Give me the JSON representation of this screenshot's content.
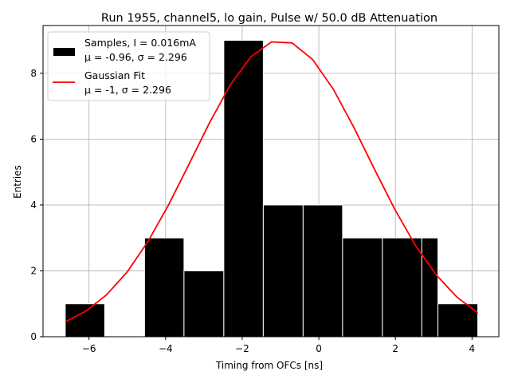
{
  "chart_data": {
    "type": "bar",
    "title": "Run 1955, channel5, lo gain, Pulse w/ 50.0 dB Attenuation",
    "xlabel": "Timing from OFCs [ns]",
    "ylabel": "Entries",
    "xlim": [
      -7.2,
      4.7
    ],
    "ylim": [
      0,
      9.45
    ],
    "x_ticks": [
      -6,
      -4,
      -2,
      0,
      2,
      4
    ],
    "x_tick_labels": [
      "−6",
      "−4",
      "−2",
      "0",
      "2",
      "4"
    ],
    "y_ticks": [
      0,
      2,
      4,
      6,
      8
    ],
    "y_tick_labels": [
      "0",
      "2",
      "4",
      "6",
      "8"
    ],
    "grid": true,
    "legend_position": "top-left",
    "colors": {
      "bars": "#000000",
      "bar_edge": "#ffffff",
      "fit": "#ff0000",
      "grid": "#b0b0b0"
    },
    "series": [
      {
        "name": "Samples, I = 0.016mA",
        "name_line2": "μ = -0.96, σ = 2.296",
        "kind": "histogram",
        "bins": [
          {
            "x0": -6.62,
            "x1": -5.59,
            "count": 1
          },
          {
            "x0": -5.59,
            "x1": -4.55,
            "count": 0
          },
          {
            "x0": -4.55,
            "x1": -3.52,
            "count": 3
          },
          {
            "x0": -3.52,
            "x1": -2.48,
            "count": 2
          },
          {
            "x0": -2.48,
            "x1": -1.45,
            "count": 9
          },
          {
            "x0": -1.45,
            "x1": -0.41,
            "count": 4
          },
          {
            "x0": -0.41,
            "x1": 0.62,
            "count": 4
          },
          {
            "x0": 0.62,
            "x1": 1.66,
            "count": 3
          },
          {
            "x0": 1.66,
            "x1": 2.69,
            "count": 3
          },
          {
            "x0": 2.69,
            "x1": 3.11,
            "count": 3
          },
          {
            "x0": 3.11,
            "x1": 4.15,
            "count": 1
          }
        ]
      },
      {
        "name": "Gaussian Fit",
        "name_line2": "μ = -1, σ = 2.296",
        "kind": "line",
        "amplitude": 9.0,
        "mu": -1.0,
        "sigma": 2.296,
        "x_range": [
          -6.62,
          4.15
        ]
      }
    ]
  }
}
